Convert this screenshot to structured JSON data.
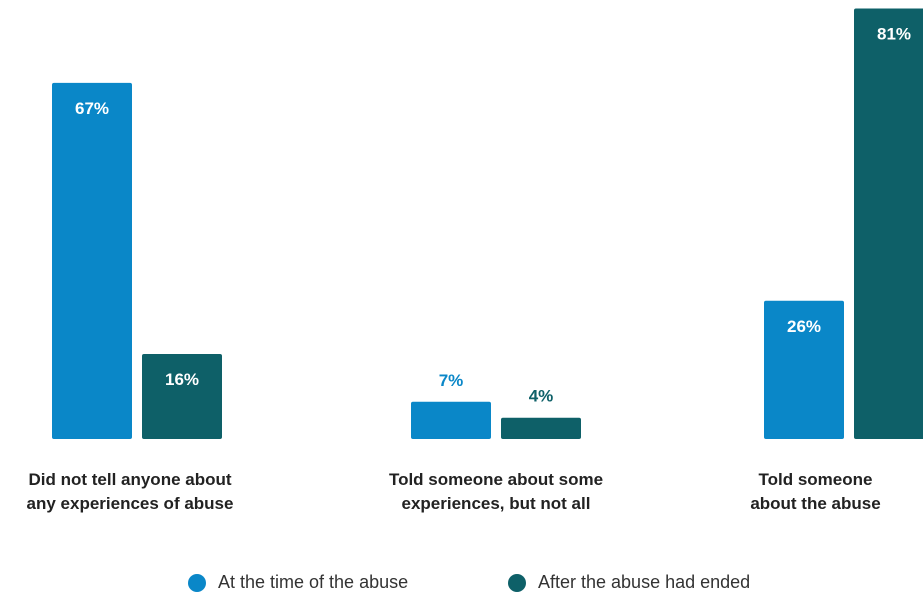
{
  "chart_data": {
    "type": "bar",
    "categories": [
      "Did not tell anyone about any experiences of abuse",
      "Told someone about some experiences, but not all",
      "Told someone about the abuse"
    ],
    "category_lines": [
      [
        "Did not tell anyone about",
        "any experiences of abuse"
      ],
      [
        "Told someone about some",
        "experiences, but not all"
      ],
      [
        "Told someone",
        "about the abuse"
      ]
    ],
    "series": [
      {
        "name": "At the time of the abuse",
        "values": [
          67,
          7,
          26
        ],
        "labels": [
          "67%",
          "7%",
          "26%"
        ],
        "color": "#0a87c8"
      },
      {
        "name": "After the abuse had ended",
        "values": [
          16,
          4,
          81
        ],
        "labels": [
          "16%",
          "4%",
          "81%"
        ],
        "color": "#0e6068"
      }
    ],
    "ylim": [
      0,
      100
    ],
    "grid": false,
    "legend_placement": "bottom",
    "title": "",
    "xlabel": "",
    "ylabel": ""
  }
}
